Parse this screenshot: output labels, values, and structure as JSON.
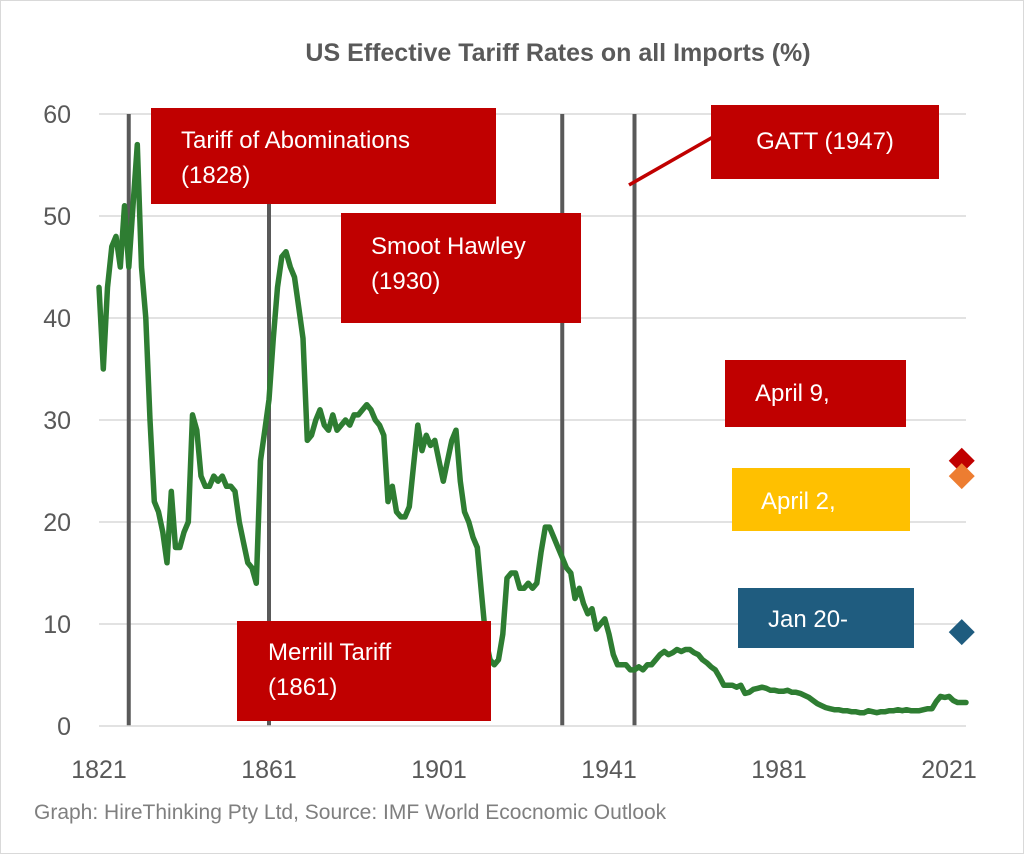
{
  "chart_data": {
    "type": "line",
    "title": "US Effective Tariff Rates on all Imports (%)",
    "caption": "Graph: HireThinking Pty Ltd, Source: IMF World Ecocnomic Outlook",
    "xlabel": "",
    "ylabel": "",
    "xlim": [
      1821,
      2025
    ],
    "ylim": [
      0,
      60
    ],
    "x_ticks": [
      "1821",
      "1861",
      "1901",
      "1941",
      "1981",
      "2021"
    ],
    "y_ticks": [
      "0",
      "10",
      "20",
      "30",
      "40",
      "50",
      "60"
    ],
    "grid": true,
    "line_color": "#2e7d32",
    "series": [
      {
        "points": [
          [
            1821,
            43
          ],
          [
            1822,
            35
          ],
          [
            1823,
            43
          ],
          [
            1824,
            47
          ],
          [
            1825,
            48
          ],
          [
            1826,
            45
          ],
          [
            1827,
            51
          ],
          [
            1828,
            45
          ],
          [
            1829,
            51
          ],
          [
            1830,
            57
          ],
          [
            1831,
            45
          ],
          [
            1832,
            40
          ],
          [
            1833,
            30
          ],
          [
            1834,
            22
          ],
          [
            1835,
            21
          ],
          [
            1836,
            19
          ],
          [
            1837,
            16
          ],
          [
            1838,
            23
          ],
          [
            1839,
            17.5
          ],
          [
            1840,
            17.5
          ],
          [
            1841,
            19
          ],
          [
            1842,
            20
          ],
          [
            1843,
            30.5
          ],
          [
            1844,
            29
          ],
          [
            1845,
            24.5
          ],
          [
            1846,
            23.5
          ],
          [
            1847,
            23.5
          ],
          [
            1848,
            24.5
          ],
          [
            1849,
            24
          ],
          [
            1850,
            24.5
          ],
          [
            1851,
            23.5
          ],
          [
            1852,
            23.5
          ],
          [
            1853,
            23
          ],
          [
            1854,
            20
          ],
          [
            1855,
            18
          ],
          [
            1856,
            16
          ],
          [
            1857,
            15.5
          ],
          [
            1858,
            14
          ],
          [
            1859,
            26
          ],
          [
            1860,
            29
          ],
          [
            1861,
            32
          ],
          [
            1862,
            38
          ],
          [
            1863,
            43
          ],
          [
            1864,
            46
          ],
          [
            1865,
            46.5
          ],
          [
            1866,
            45
          ],
          [
            1867,
            44
          ],
          [
            1868,
            41
          ],
          [
            1869,
            38
          ],
          [
            1870,
            28
          ],
          [
            1871,
            28.5
          ],
          [
            1872,
            30
          ],
          [
            1873,
            31
          ],
          [
            1874,
            29.5
          ],
          [
            1875,
            29
          ],
          [
            1876,
            30.5
          ],
          [
            1877,
            29
          ],
          [
            1878,
            29.5
          ],
          [
            1879,
            30
          ],
          [
            1880,
            29.5
          ],
          [
            1881,
            30.5
          ],
          [
            1882,
            30.5
          ],
          [
            1883,
            31
          ],
          [
            1884,
            31.5
          ],
          [
            1885,
            31
          ],
          [
            1886,
            30
          ],
          [
            1887,
            29.5
          ],
          [
            1888,
            28.5
          ],
          [
            1889,
            22
          ],
          [
            1890,
            23.5
          ],
          [
            1891,
            21
          ],
          [
            1892,
            20.5
          ],
          [
            1893,
            20.5
          ],
          [
            1894,
            21.5
          ],
          [
            1895,
            25.5
          ],
          [
            1896,
            29.5
          ],
          [
            1897,
            27
          ],
          [
            1898,
            28.5
          ],
          [
            1899,
            27.5
          ],
          [
            1900,
            28
          ],
          [
            1901,
            26
          ],
          [
            1902,
            24
          ],
          [
            1903,
            26
          ],
          [
            1904,
            28
          ],
          [
            1905,
            29
          ],
          [
            1906,
            24
          ],
          [
            1907,
            21
          ],
          [
            1908,
            20
          ],
          [
            1909,
            18.5
          ],
          [
            1910,
            17.5
          ],
          [
            1911,
            13
          ],
          [
            1912,
            8.5
          ],
          [
            1913,
            6.5
          ],
          [
            1914,
            6
          ],
          [
            1915,
            6.5
          ],
          [
            1916,
            9
          ],
          [
            1917,
            14.5
          ],
          [
            1918,
            15
          ],
          [
            1919,
            15
          ],
          [
            1920,
            13.5
          ],
          [
            1921,
            13.5
          ],
          [
            1922,
            14
          ],
          [
            1923,
            13.5
          ],
          [
            1924,
            14
          ],
          [
            1925,
            17
          ],
          [
            1926,
            19.5
          ],
          [
            1927,
            19.5
          ],
          [
            1928,
            18.5
          ],
          [
            1929,
            17.5
          ],
          [
            1930,
            16.5
          ],
          [
            1931,
            15.5
          ],
          [
            1932,
            15
          ],
          [
            1933,
            12.5
          ],
          [
            1934,
            13.5
          ],
          [
            1935,
            12
          ],
          [
            1936,
            11
          ],
          [
            1937,
            11.5
          ],
          [
            1938,
            9.5
          ],
          [
            1939,
            10
          ],
          [
            1940,
            10.5
          ],
          [
            1941,
            9
          ],
          [
            1942,
            7
          ],
          [
            1943,
            6
          ],
          [
            1944,
            6
          ],
          [
            1945,
            6
          ],
          [
            1946,
            5.5
          ],
          [
            1947,
            5.5
          ],
          [
            1948,
            5.8
          ],
          [
            1949,
            5.5
          ],
          [
            1950,
            6
          ],
          [
            1951,
            6
          ],
          [
            1952,
            6.5
          ],
          [
            1953,
            7
          ],
          [
            1954,
            7.3
          ],
          [
            1955,
            7
          ],
          [
            1956,
            7.2
          ],
          [
            1957,
            7.5
          ],
          [
            1958,
            7.3
          ],
          [
            1959,
            7.5
          ],
          [
            1960,
            7.5
          ],
          [
            1961,
            7.2
          ],
          [
            1962,
            7
          ],
          [
            1963,
            6.5
          ],
          [
            1964,
            6.2
          ],
          [
            1965,
            5.8
          ],
          [
            1966,
            5.5
          ],
          [
            1967,
            4.8
          ],
          [
            1968,
            4
          ],
          [
            1969,
            4
          ],
          [
            1970,
            4
          ],
          [
            1971,
            3.8
          ],
          [
            1972,
            4
          ],
          [
            1973,
            3.2
          ],
          [
            1974,
            3.3
          ],
          [
            1975,
            3.6
          ],
          [
            1976,
            3.7
          ],
          [
            1977,
            3.8
          ],
          [
            1978,
            3.7
          ],
          [
            1979,
            3.5
          ],
          [
            1980,
            3.5
          ],
          [
            1981,
            3.4
          ],
          [
            1982,
            3.4
          ],
          [
            1983,
            3.5
          ],
          [
            1984,
            3.3
          ],
          [
            1985,
            3.3
          ],
          [
            1986,
            3.2
          ],
          [
            1987,
            3
          ],
          [
            1988,
            2.8
          ],
          [
            1989,
            2.5
          ],
          [
            1990,
            2.2
          ],
          [
            1991,
            2
          ],
          [
            1992,
            1.8
          ],
          [
            1993,
            1.7
          ],
          [
            1994,
            1.6
          ],
          [
            1995,
            1.6
          ],
          [
            1996,
            1.5
          ],
          [
            1997,
            1.5
          ],
          [
            1998,
            1.4
          ],
          [
            1999,
            1.4
          ],
          [
            2000,
            1.3
          ],
          [
            2001,
            1.3
          ],
          [
            2002,
            1.5
          ],
          [
            2003,
            1.4
          ],
          [
            2004,
            1.3
          ],
          [
            2005,
            1.4
          ],
          [
            2006,
            1.4
          ],
          [
            2007,
            1.5
          ],
          [
            2008,
            1.5
          ],
          [
            2009,
            1.6
          ],
          [
            2010,
            1.5
          ],
          [
            2011,
            1.6
          ],
          [
            2012,
            1.5
          ],
          [
            2013,
            1.5
          ],
          [
            2014,
            1.5
          ],
          [
            2015,
            1.6
          ],
          [
            2016,
            1.7
          ],
          [
            2017,
            1.7
          ],
          [
            2018,
            2.4
          ],
          [
            2019,
            2.9
          ],
          [
            2020,
            2.8
          ],
          [
            2021,
            2.9
          ],
          [
            2022,
            2.5
          ],
          [
            2023,
            2.3
          ],
          [
            2024,
            2.3
          ],
          [
            2025,
            2.3
          ]
        ]
      }
    ],
    "vertical_lines": [
      1828,
      1861,
      1930,
      1947
    ],
    "markers": [
      {
        "x": 2024,
        "y": 26,
        "color": "#c00000"
      },
      {
        "x": 2024,
        "y": 24.5,
        "color": "#ed7d31"
      },
      {
        "x": 2024,
        "y": 9.2,
        "color": "#1f5c7f"
      }
    ],
    "annotations": [
      {
        "id": "tariff-of-abominations",
        "lines": [
          "Tariff of Abominations",
          "(1828)"
        ],
        "color": "#c00000"
      },
      {
        "id": "smoot-hawley",
        "lines": [
          "Smoot Hawley",
          "(1930)"
        ],
        "color": "#c00000"
      },
      {
        "id": "gatt",
        "lines": [
          "GATT (1947)"
        ],
        "color": "#c00000"
      },
      {
        "id": "merrill-tariff",
        "lines": [
          "Merrill Tariff",
          "(1861)"
        ],
        "color": "#c00000"
      },
      {
        "id": "april-9",
        "lines": [
          "April 9,"
        ],
        "color": "#c00000"
      },
      {
        "id": "april-2",
        "lines": [
          "April 2,"
        ],
        "color": "#ffc000"
      },
      {
        "id": "jan-20",
        "lines": [
          "Jan 20-"
        ],
        "color": "#1f5c7f"
      }
    ]
  }
}
